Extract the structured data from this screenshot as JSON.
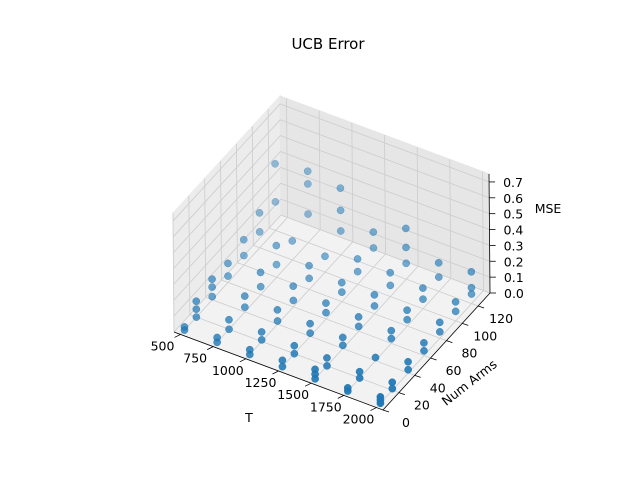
{
  "chart_data": {
    "type": "scatter",
    "projection": "3d",
    "title": "UCB Error",
    "xlabel": "T",
    "ylabel": "Num Arms",
    "zlabel": "MSE",
    "xlim": [
      450,
      2050
    ],
    "ylim": [
      0,
      135
    ],
    "zlim": [
      0,
      0.75
    ],
    "xticks": [
      500,
      750,
      1000,
      1250,
      1500,
      1750,
      2000
    ],
    "yticks": [
      0,
      20,
      40,
      60,
      80,
      100,
      120
    ],
    "zticks": [
      0.0,
      0.1,
      0.2,
      0.3,
      0.4,
      0.5,
      0.6,
      0.7
    ],
    "xtick_labels": [
      "500",
      "750",
      "1000",
      "1250",
      "1500",
      "1750",
      "2000"
    ],
    "ytick_labels": [
      "0",
      "20",
      "40",
      "60",
      "80",
      "100",
      "120"
    ],
    "ztick_labels": [
      "0.0",
      "0.1",
      "0.2",
      "0.3",
      "0.4",
      "0.5",
      "0.6",
      "0.7"
    ],
    "grid": true,
    "marker_color": "#1f77b4",
    "points": [
      {
        "x": 500,
        "y": 5,
        "z": 0.0
      },
      {
        "x": 500,
        "y": 5,
        "z": 0.02
      },
      {
        "x": 500,
        "y": 20,
        "z": 0.0
      },
      {
        "x": 500,
        "y": 20,
        "z": 0.05
      },
      {
        "x": 500,
        "y": 20,
        "z": 0.1
      },
      {
        "x": 500,
        "y": 40,
        "z": 0.02
      },
      {
        "x": 500,
        "y": 40,
        "z": 0.08
      },
      {
        "x": 500,
        "y": 40,
        "z": 0.13
      },
      {
        "x": 500,
        "y": 60,
        "z": 0.04
      },
      {
        "x": 500,
        "y": 60,
        "z": 0.12
      },
      {
        "x": 500,
        "y": 80,
        "z": 0.06
      },
      {
        "x": 500,
        "y": 80,
        "z": 0.16
      },
      {
        "x": 500,
        "y": 100,
        "z": 0.1
      },
      {
        "x": 500,
        "y": 100,
        "z": 0.22
      },
      {
        "x": 500,
        "y": 120,
        "z": 0.18
      },
      {
        "x": 500,
        "y": 120,
        "z": 0.42
      },
      {
        "x": 750,
        "y": 5,
        "z": 0.0
      },
      {
        "x": 750,
        "y": 5,
        "z": 0.03
      },
      {
        "x": 750,
        "y": 20,
        "z": 0.0
      },
      {
        "x": 750,
        "y": 20,
        "z": 0.06
      },
      {
        "x": 750,
        "y": 40,
        "z": 0.03
      },
      {
        "x": 750,
        "y": 40,
        "z": 0.1
      },
      {
        "x": 750,
        "y": 60,
        "z": 0.05
      },
      {
        "x": 750,
        "y": 60,
        "z": 0.14
      },
      {
        "x": 750,
        "y": 80,
        "z": 0.08
      },
      {
        "x": 750,
        "y": 80,
        "z": 0.2
      },
      {
        "x": 750,
        "y": 100,
        "z": 0.12
      },
      {
        "x": 750,
        "y": 120,
        "z": 0.18
      },
      {
        "x": 750,
        "y": 120,
        "z": 0.37
      },
      {
        "x": 750,
        "y": 120,
        "z": 0.45
      },
      {
        "x": 1000,
        "y": 5,
        "z": 0.0
      },
      {
        "x": 1000,
        "y": 5,
        "z": 0.03
      },
      {
        "x": 1000,
        "y": 20,
        "z": 0.01
      },
      {
        "x": 1000,
        "y": 20,
        "z": 0.06
      },
      {
        "x": 1000,
        "y": 40,
        "z": 0.02
      },
      {
        "x": 1000,
        "y": 40,
        "z": 0.09
      },
      {
        "x": 1000,
        "y": 60,
        "z": 0.04
      },
      {
        "x": 1000,
        "y": 60,
        "z": 0.13
      },
      {
        "x": 1000,
        "y": 80,
        "z": 0.07
      },
      {
        "x": 1000,
        "y": 80,
        "z": 0.15
      },
      {
        "x": 1000,
        "y": 100,
        "z": 0.1
      },
      {
        "x": 1000,
        "y": 120,
        "z": 0.15
      },
      {
        "x": 1000,
        "y": 120,
        "z": 0.28
      },
      {
        "x": 1000,
        "y": 120,
        "z": 0.42
      },
      {
        "x": 1250,
        "y": 5,
        "z": 0.0
      },
      {
        "x": 1250,
        "y": 5,
        "z": 0.04
      },
      {
        "x": 1250,
        "y": 20,
        "z": 0.0
      },
      {
        "x": 1250,
        "y": 20,
        "z": 0.05
      },
      {
        "x": 1250,
        "y": 40,
        "z": 0.02
      },
      {
        "x": 1250,
        "y": 40,
        "z": 0.08
      },
      {
        "x": 1250,
        "y": 60,
        "z": 0.04
      },
      {
        "x": 1250,
        "y": 60,
        "z": 0.1
      },
      {
        "x": 1250,
        "y": 80,
        "z": 0.06
      },
      {
        "x": 1250,
        "y": 80,
        "z": 0.12
      },
      {
        "x": 1250,
        "y": 100,
        "z": 0.08
      },
      {
        "x": 1250,
        "y": 100,
        "z": 0.16
      },
      {
        "x": 1250,
        "y": 120,
        "z": 0.12
      },
      {
        "x": 1250,
        "y": 120,
        "z": 0.22
      },
      {
        "x": 1500,
        "y": 5,
        "z": 0.0
      },
      {
        "x": 1500,
        "y": 5,
        "z": 0.03
      },
      {
        "x": 1500,
        "y": 5,
        "z": 0.06
      },
      {
        "x": 1500,
        "y": 20,
        "z": 0.0
      },
      {
        "x": 1500,
        "y": 20,
        "z": 0.05
      },
      {
        "x": 1500,
        "y": 40,
        "z": 0.02
      },
      {
        "x": 1500,
        "y": 40,
        "z": 0.07
      },
      {
        "x": 1500,
        "y": 60,
        "z": 0.03
      },
      {
        "x": 1500,
        "y": 60,
        "z": 0.09
      },
      {
        "x": 1500,
        "y": 80,
        "z": 0.05
      },
      {
        "x": 1500,
        "y": 80,
        "z": 0.12
      },
      {
        "x": 1500,
        "y": 100,
        "z": 0.07
      },
      {
        "x": 1500,
        "y": 100,
        "z": 0.15
      },
      {
        "x": 1500,
        "y": 120,
        "z": 0.1
      },
      {
        "x": 1500,
        "y": 120,
        "z": 0.2
      },
      {
        "x": 1500,
        "y": 120,
        "z": 0.32
      },
      {
        "x": 1750,
        "y": 5,
        "z": 0.0
      },
      {
        "x": 1750,
        "y": 5,
        "z": 0.02
      },
      {
        "x": 1750,
        "y": 20,
        "z": 0.0
      },
      {
        "x": 1750,
        "y": 20,
        "z": 0.04
      },
      {
        "x": 1750,
        "y": 40,
        "z": 0.02
      },
      {
        "x": 1750,
        "y": 60,
        "z": 0.03
      },
      {
        "x": 1750,
        "y": 60,
        "z": 0.08
      },
      {
        "x": 1750,
        "y": 80,
        "z": 0.04
      },
      {
        "x": 1750,
        "y": 80,
        "z": 0.1
      },
      {
        "x": 1750,
        "y": 100,
        "z": 0.06
      },
      {
        "x": 1750,
        "y": 100,
        "z": 0.13
      },
      {
        "x": 1750,
        "y": 120,
        "z": 0.09
      },
      {
        "x": 1750,
        "y": 120,
        "z": 0.18
      },
      {
        "x": 2000,
        "y": 5,
        "z": 0.0
      },
      {
        "x": 2000,
        "y": 5,
        "z": 0.02
      },
      {
        "x": 2000,
        "y": 5,
        "z": 0.04
      },
      {
        "x": 2000,
        "y": 20,
        "z": 0.01
      },
      {
        "x": 2000,
        "y": 20,
        "z": 0.05
      },
      {
        "x": 2000,
        "y": 40,
        "z": 0.02
      },
      {
        "x": 2000,
        "y": 40,
        "z": 0.07
      },
      {
        "x": 2000,
        "y": 60,
        "z": 0.03
      },
      {
        "x": 2000,
        "y": 60,
        "z": 0.08
      },
      {
        "x": 2000,
        "y": 80,
        "z": 0.04
      },
      {
        "x": 2000,
        "y": 80,
        "z": 0.1
      },
      {
        "x": 2000,
        "y": 100,
        "z": 0.06
      },
      {
        "x": 2000,
        "y": 100,
        "z": 0.12
      },
      {
        "x": 2000,
        "y": 120,
        "z": 0.06
      },
      {
        "x": 2000,
        "y": 120,
        "z": 0.1
      },
      {
        "x": 2000,
        "y": 120,
        "z": 0.2
      }
    ]
  }
}
